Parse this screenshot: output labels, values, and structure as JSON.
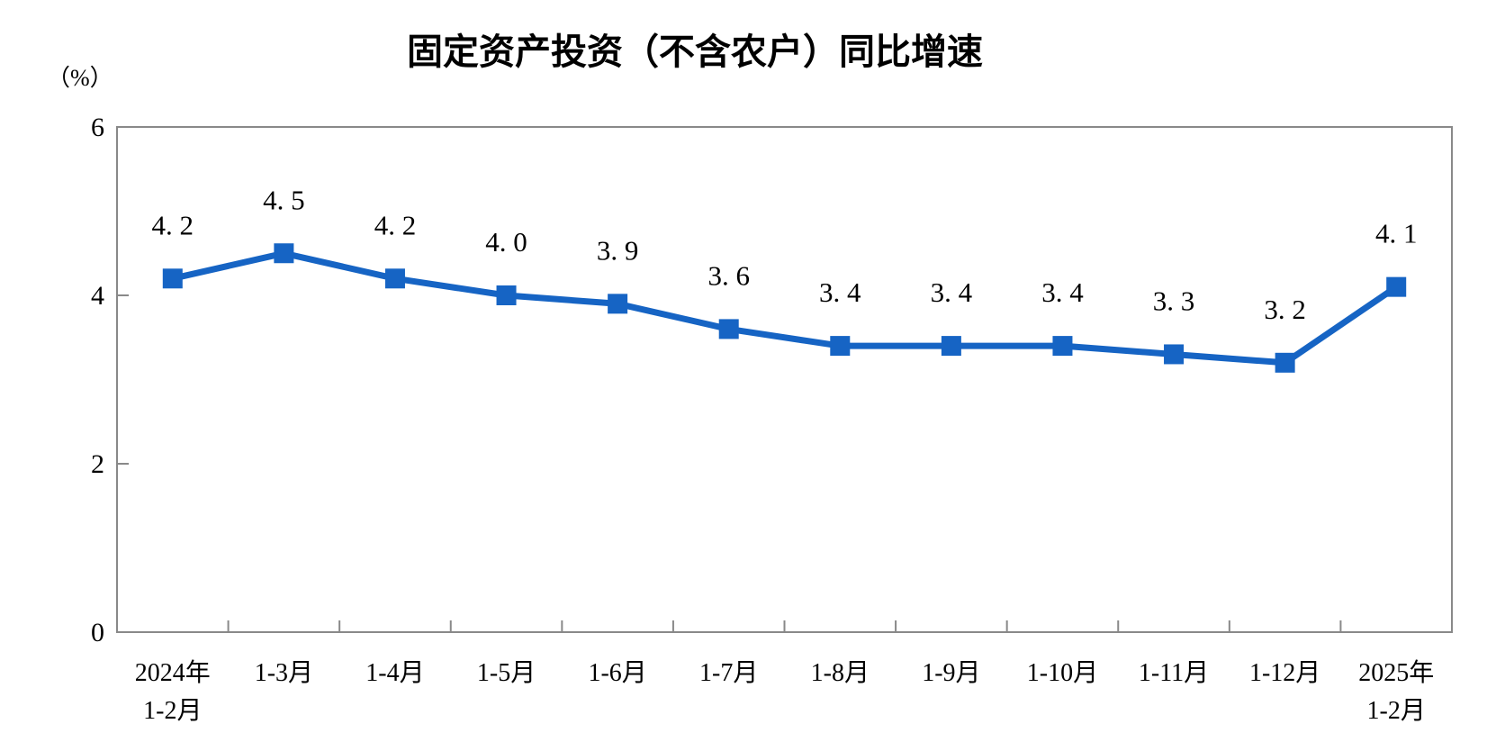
{
  "chart_data": {
    "type": "line",
    "title": "固定资产投资（不含农户）同比增速",
    "unit_label": "（%）",
    "categories": [
      [
        "2024年",
        "1-2月"
      ],
      [
        "1-3月"
      ],
      [
        "1-4月"
      ],
      [
        "1-5月"
      ],
      [
        "1-6月"
      ],
      [
        "1-7月"
      ],
      [
        "1-8月"
      ],
      [
        "1-9月"
      ],
      [
        "1-10月"
      ],
      [
        "1-11月"
      ],
      [
        "1-12月"
      ],
      [
        "2025年",
        "1-2月"
      ]
    ],
    "values": [
      4.2,
      4.5,
      4.2,
      4.0,
      3.9,
      3.6,
      3.4,
      3.4,
      3.4,
      3.3,
      3.2,
      4.1
    ],
    "data_labels": [
      "4. 2",
      "4. 5",
      "4. 2",
      "4. 0",
      "3. 9",
      "3. 6",
      "3. 4",
      "3. 4",
      "3. 4",
      "3. 3",
      "3. 2",
      "4. 1"
    ],
    "y_axis": {
      "tick_labels": [
        "0",
        "2",
        "4",
        "6"
      ],
      "tick_values": [
        0,
        2,
        4,
        6
      ],
      "min": 0,
      "max": 6
    },
    "grid": false,
    "legend": "none",
    "styles": {
      "line_color": "#1664C4",
      "marker_color": "#1664C4",
      "marker_shape": "square",
      "axis_color": "#898989",
      "text_color": "#000000"
    }
  }
}
